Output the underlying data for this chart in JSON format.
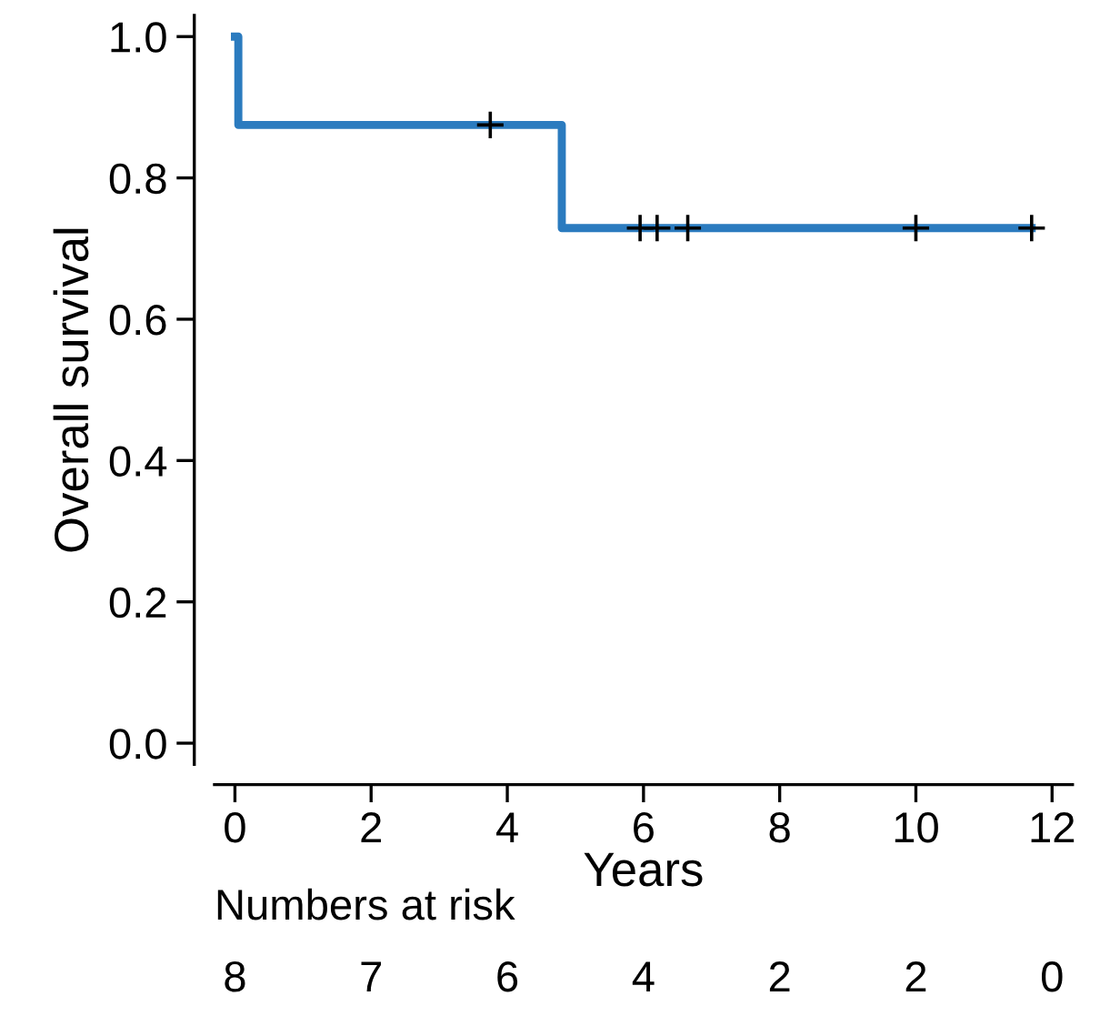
{
  "chart_data": {
    "type": "step",
    "xlabel": "Years",
    "ylabel": "Overall survival",
    "series": [
      {
        "color": "#2b7bbf",
        "x": [
          0,
          0.05,
          4.8,
          11.7
        ],
        "values": [
          1.0,
          0.875,
          0.729,
          0.729
        ]
      },
      {
        "type": "scatter",
        "color": "#000000",
        "marker": "cross",
        "x": [
          3.75,
          5.95,
          6.2,
          6.65,
          10.0,
          11.7
        ],
        "values": [
          0.875,
          0.729,
          0.729,
          0.729,
          0.729,
          0.729
        ]
      }
    ],
    "xlim": [
      -0.3,
      12.3
    ],
    "xticks": [
      0,
      2,
      4,
      6,
      8,
      10,
      12
    ],
    "ylim": [
      -0.03,
      1.03
    ],
    "yticks": [
      {
        "value": 0,
        "label": "0.0"
      },
      0.2,
      0.4,
      0.6,
      0.8,
      {
        "value": 1,
        "label": "1.0"
      }
    ],
    "grid": false,
    "annotations": [
      "Numbers at risk",
      "8",
      "7",
      "6",
      "4",
      "2",
      "2",
      "0"
    ]
  }
}
